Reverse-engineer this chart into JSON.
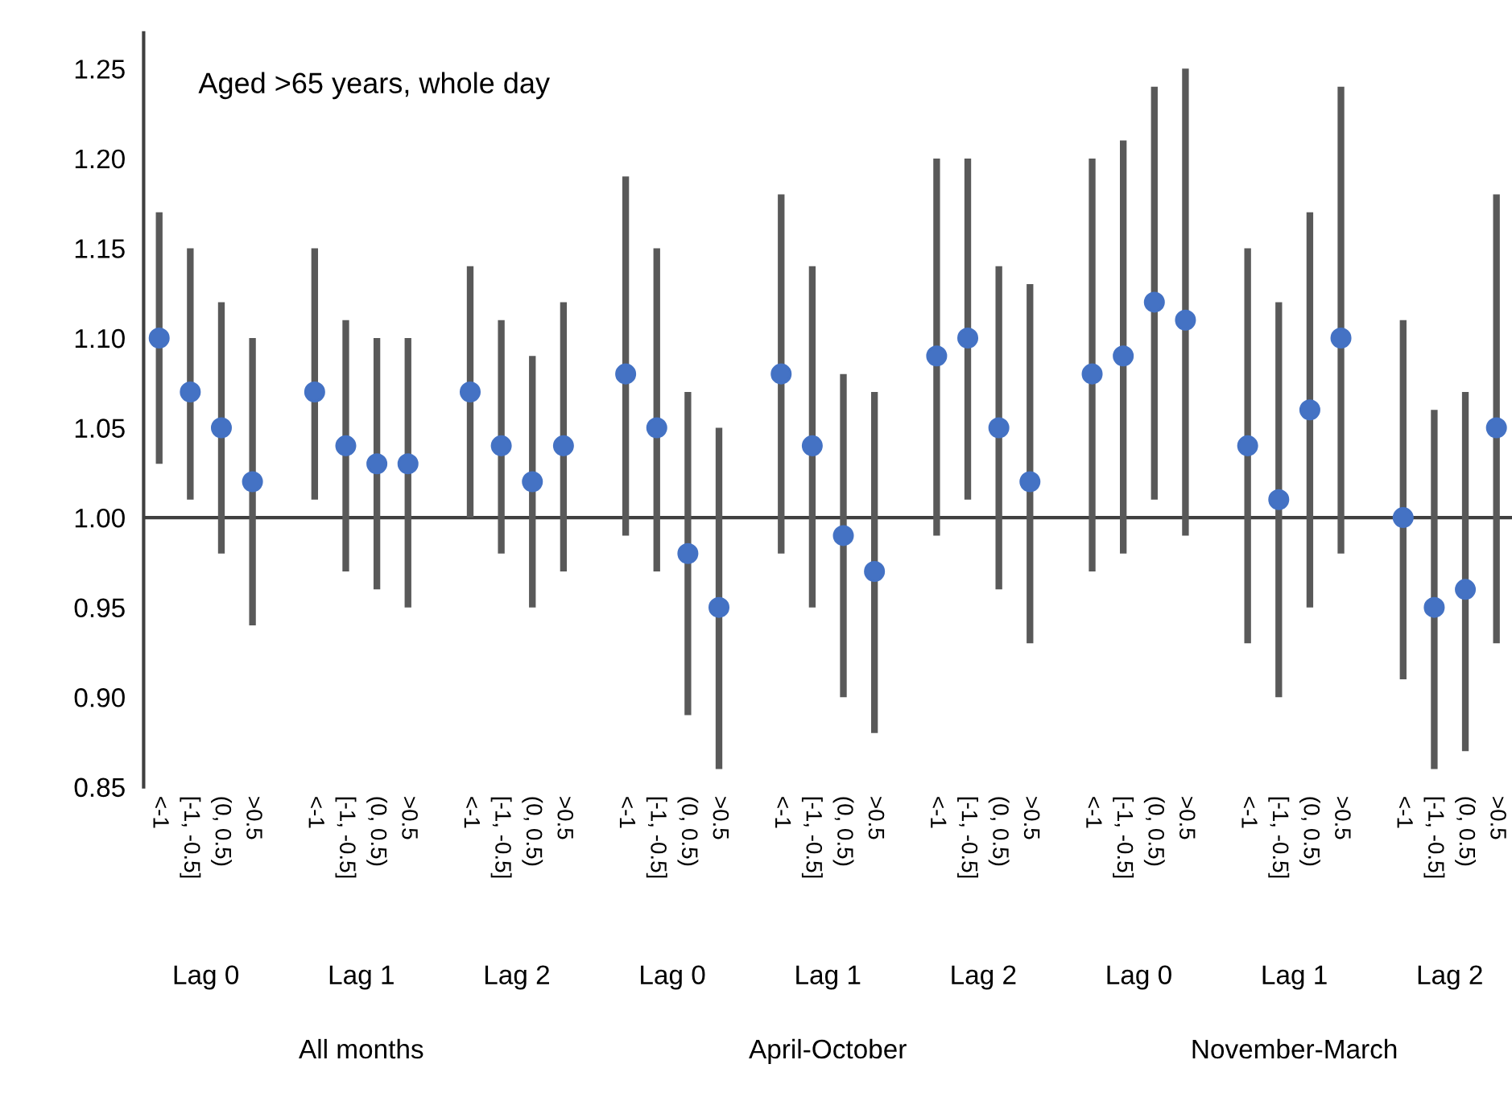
{
  "chart_data": {
    "type": "scatter",
    "title": "Aged >65 years, whole day",
    "categories": [
      "<-1",
      "[-1, -0.5]",
      "(0, 0.5)",
      ">0.5",
      null,
      "<-1",
      "[-1, -0.5]",
      "(0, 0.5)",
      ">0.5",
      null,
      "<-1",
      "[-1, -0.5]",
      "(0, 0.5)",
      ">0.5",
      null,
      "<-1",
      "[-1, -0.5]",
      "(0, 0.5)",
      ">0.5",
      null,
      "<-1",
      "[-1, -0.5]",
      "(0, 0.5)",
      ">0.5",
      null,
      "<-1",
      "[-1, -0.5]",
      "(0, 0.5)",
      ">0.5",
      null,
      "<-1",
      "[-1, -0.5]",
      "(0, 0.5)",
      ">0.5",
      null,
      "<-1",
      "[-1, -0.5]",
      "(0, 0.5)",
      ">0.5",
      null,
      "<-1",
      "[-1, -0.5]",
      "(0, 0.5)",
      ">0.5"
    ],
    "series": [
      {
        "color": "#4472c4",
        "values": [
          1.1,
          1.07,
          1.05,
          1.02,
          null,
          1.07,
          1.04,
          1.03,
          1.03,
          null,
          1.07,
          1.04,
          1.02,
          1.04,
          null,
          1.08,
          1.05,
          0.98,
          0.95,
          null,
          1.08,
          1.04,
          0.99,
          0.97,
          null,
          1.09,
          1.1,
          1.05,
          1.02,
          null,
          1.08,
          1.09,
          1.12,
          1.11,
          null,
          1.04,
          1.01,
          1.06,
          1.1,
          null,
          1.0,
          0.95,
          0.96,
          1.05
        ],
        "errors": [
          [
            1.03,
            1.17
          ],
          [
            1.01,
            1.15
          ],
          [
            0.98,
            1.12
          ],
          [
            0.94,
            1.1
          ],
          null,
          [
            1.01,
            1.15
          ],
          [
            0.97,
            1.11
          ],
          [
            0.96,
            1.1
          ],
          [
            0.95,
            1.1
          ],
          null,
          [
            1.0,
            1.14
          ],
          [
            0.98,
            1.11
          ],
          [
            0.95,
            1.09
          ],
          [
            0.97,
            1.12
          ],
          null,
          [
            0.99,
            1.19
          ],
          [
            0.97,
            1.15
          ],
          [
            0.89,
            1.07
          ],
          [
            0.86,
            1.05
          ],
          null,
          [
            0.98,
            1.18
          ],
          [
            0.95,
            1.14
          ],
          [
            0.9,
            1.08
          ],
          [
            0.88,
            1.07
          ],
          null,
          [
            0.99,
            1.2
          ],
          [
            1.01,
            1.2
          ],
          [
            0.96,
            1.14
          ],
          [
            0.93,
            1.13
          ],
          null,
          [
            0.97,
            1.2
          ],
          [
            0.98,
            1.21
          ],
          [
            1.01,
            1.24
          ],
          [
            0.99,
            1.25
          ],
          null,
          [
            0.93,
            1.15
          ],
          [
            0.9,
            1.12
          ],
          [
            0.95,
            1.17
          ],
          [
            0.98,
            1.24
          ],
          null,
          [
            0.91,
            1.11
          ],
          [
            0.86,
            1.06
          ],
          [
            0.87,
            1.07
          ],
          [
            0.93,
            1.18
          ]
        ]
      }
    ],
    "marker": "circle",
    "ylim": [
      0.85,
      1.27
    ],
    "yticks": [
      {
        "value": 0.85,
        "label": "0.85"
      },
      {
        "value": 0.9,
        "label": "0.90"
      },
      {
        "value": 0.95,
        "label": "0.95"
      },
      {
        "value": 1.0,
        "label": "1.00"
      },
      {
        "value": 1.05,
        "label": "1.05"
      },
      {
        "value": 1.1,
        "label": "1.10"
      },
      {
        "value": 1.15,
        "label": "1.15"
      },
      {
        "value": 1.2,
        "label": "1.20"
      },
      {
        "value": 1.25,
        "label": "1.25"
      }
    ],
    "ref_lines": [
      {
        "axis": "y",
        "value": 1.0,
        "color": "#404040"
      }
    ],
    "grid": false,
    "legend": false,
    "annotations": [
      "Lag 0",
      "Lag 1",
      "Lag 2",
      "Lag 0",
      "Lag 1",
      "Lag 2",
      "Lag 0",
      "Lag 1",
      "Lag 2",
      "All months",
      "April-October",
      "November-March"
    ]
  }
}
